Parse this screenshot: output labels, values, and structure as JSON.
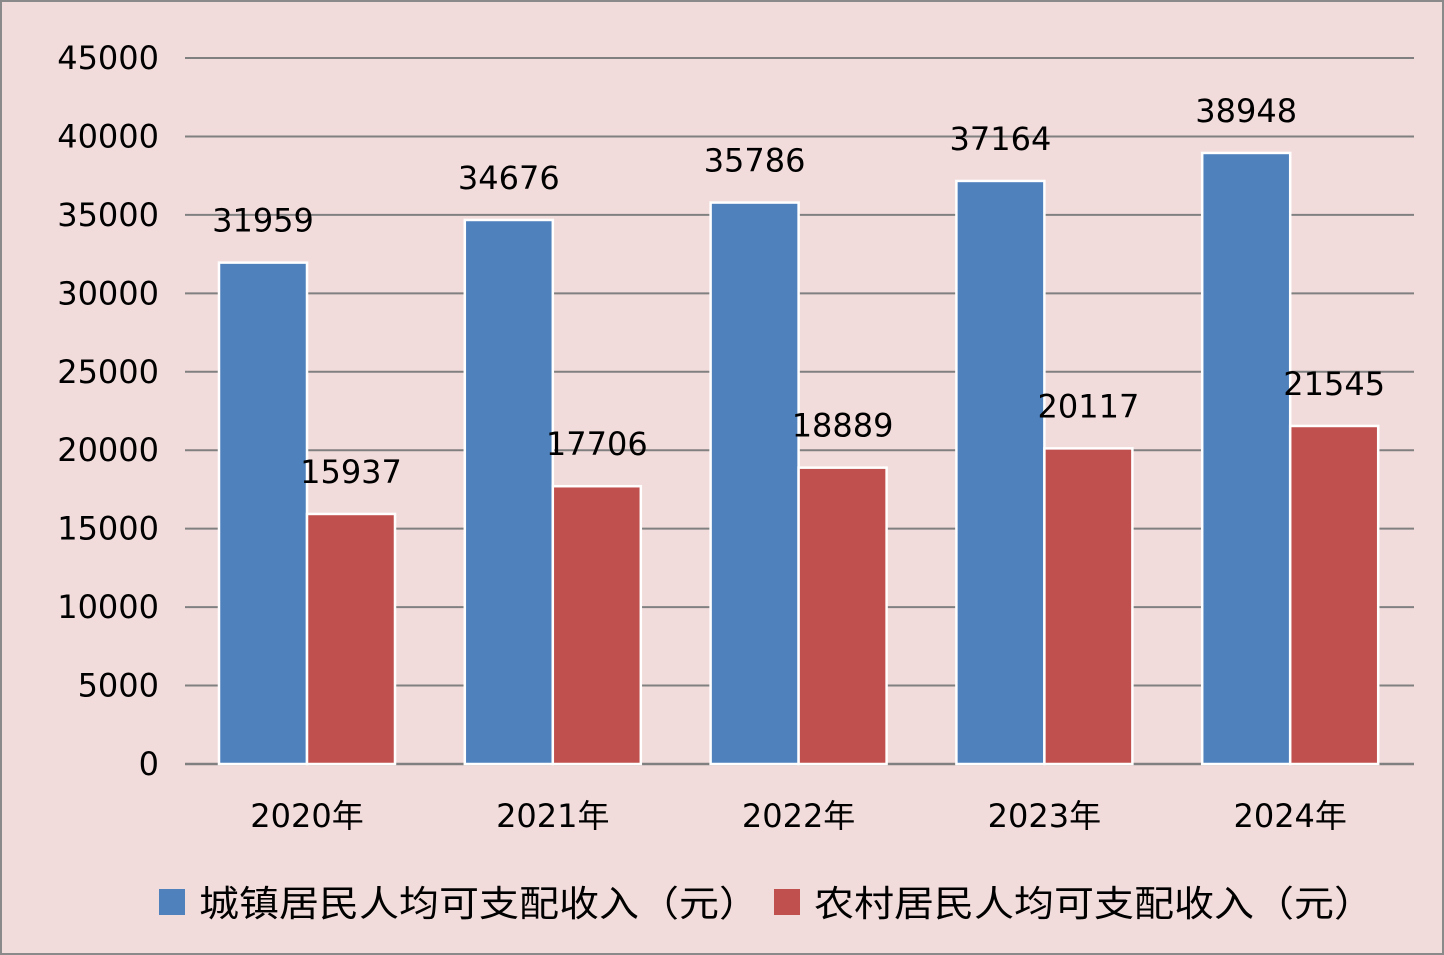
{
  "chart_data": {
    "type": "bar",
    "categories": [
      "2020年",
      "2021年",
      "2022年",
      "2023年",
      "2024年"
    ],
    "series": [
      {
        "name": "城镇居民人均可支配收入（元）",
        "color": "#4f81bd",
        "values": [
          31959,
          34676,
          35786,
          37164,
          38948
        ]
      },
      {
        "name": "农村居民人均可支配收入（元）",
        "color": "#c0504d",
        "values": [
          15937,
          17706,
          18889,
          20117,
          21545
        ]
      }
    ],
    "ylim": [
      0,
      45000
    ],
    "yticks": [
      "0",
      "5000",
      "10000",
      "15000",
      "20000",
      "25000",
      "30000",
      "35000",
      "40000",
      "45000"
    ],
    "grid": true,
    "legend_position": "bottom",
    "background_color": "#f2dcdb",
    "gridline_color": "#808080"
  }
}
